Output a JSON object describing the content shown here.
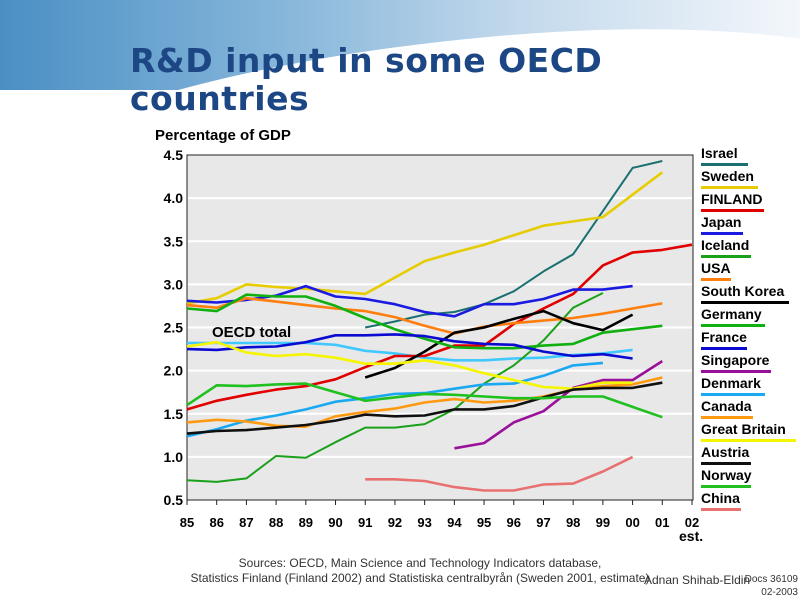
{
  "slide": {
    "title": "R&D input in some OECD countries",
    "sources_line1": "Sources: OECD, Main Science and Technology Indicators database,",
    "sources_line2": "Statistics Finland (Finland 2002) and Statistiska centralbyrån (Sweden 2001, estimate)",
    "author": "Adnan Shihab-Eldin",
    "doc_id": "Docs 36109",
    "doc_date": "02-2003"
  },
  "chart_data": {
    "type": "line",
    "title": "R&D input in some OECD countries",
    "ylabel": "Percentage of GDP",
    "xlabel": "",
    "x": [
      "85",
      "86",
      "87",
      "88",
      "89",
      "90",
      "91",
      "92",
      "93",
      "94",
      "95",
      "96",
      "97",
      "98",
      "99",
      "00",
      "01",
      "02"
    ],
    "x_extra_label": "est.",
    "yticks": [
      "0.5",
      "1.0",
      "1.5",
      "2.0",
      "2.5",
      "3.0",
      "3.5",
      "4.0",
      "4.5"
    ],
    "ylim": [
      0.5,
      4.5
    ],
    "grid": true,
    "legend_position": "right",
    "annotation": "OECD total",
    "series": [
      {
        "name": "Israel",
        "color": "#1a7070",
        "values": [
          null,
          null,
          null,
          null,
          null,
          null,
          2.5,
          2.57,
          2.65,
          2.68,
          2.77,
          2.92,
          3.15,
          3.35,
          3.85,
          4.35,
          4.43,
          null
        ]
      },
      {
        "name": "Sweden",
        "color": "#e6cc00",
        "values": [
          2.78,
          2.84,
          3.0,
          2.97,
          2.95,
          2.92,
          2.89,
          3.08,
          3.27,
          3.37,
          3.46,
          3.57,
          3.68,
          3.73,
          3.78,
          4.04,
          4.3,
          null
        ]
      },
      {
        "name": "FINLAND",
        "color": "#e00000",
        "values": [
          1.55,
          1.65,
          1.72,
          1.78,
          1.82,
          1.9,
          2.04,
          2.17,
          2.17,
          2.29,
          2.29,
          2.54,
          2.72,
          2.89,
          3.22,
          3.37,
          3.4,
          3.46
        ]
      },
      {
        "name": "Japan",
        "color": "#1a1ae0",
        "values": [
          2.81,
          2.79,
          2.82,
          2.87,
          2.98,
          2.86,
          2.83,
          2.77,
          2.68,
          2.63,
          2.77,
          2.77,
          2.83,
          2.94,
          2.94,
          2.98,
          null,
          null
        ]
      },
      {
        "name": "Iceland",
        "color": "#1aa01a",
        "values": [
          0.73,
          0.71,
          0.75,
          1.01,
          0.99,
          1.17,
          1.34,
          1.34,
          1.38,
          1.55,
          1.85,
          2.06,
          2.35,
          2.73,
          2.9,
          null,
          null,
          null
        ]
      },
      {
        "name": "USA",
        "color": "#ff7f0e",
        "values": [
          2.76,
          2.73,
          2.84,
          2.8,
          2.76,
          2.72,
          2.69,
          2.62,
          2.52,
          2.43,
          2.51,
          2.55,
          2.58,
          2.61,
          2.66,
          2.72,
          2.78,
          null
        ]
      },
      {
        "name": "South Korea",
        "color": "#000000",
        "values": [
          null,
          null,
          null,
          null,
          null,
          null,
          1.92,
          2.03,
          2.22,
          2.44,
          2.5,
          2.6,
          2.69,
          2.55,
          2.47,
          2.65,
          null,
          null
        ]
      },
      {
        "name": "Germany",
        "color": "#10b010",
        "values": [
          2.72,
          2.69,
          2.88,
          2.86,
          2.86,
          2.75,
          2.61,
          2.48,
          2.37,
          2.27,
          2.26,
          2.26,
          2.29,
          2.31,
          2.44,
          2.48,
          2.52,
          null
        ]
      },
      {
        "name": "France",
        "color": "#0a0ad0",
        "values": [
          2.25,
          2.24,
          2.27,
          2.28,
          2.33,
          2.41,
          2.41,
          2.42,
          2.4,
          2.34,
          2.31,
          2.3,
          2.22,
          2.17,
          2.19,
          2.14,
          null,
          null
        ]
      },
      {
        "name": "Singapore",
        "color": "#9a109a",
        "values": [
          null,
          null,
          null,
          null,
          null,
          null,
          null,
          null,
          null,
          1.1,
          1.16,
          1.4,
          1.53,
          1.8,
          1.89,
          1.89,
          2.11,
          null
        ]
      },
      {
        "name": "Denmark",
        "color": "#1aa8f0",
        "values": [
          1.24,
          1.32,
          1.42,
          1.48,
          1.55,
          1.64,
          1.68,
          1.73,
          1.74,
          1.79,
          1.84,
          1.85,
          1.94,
          2.06,
          2.09,
          null,
          null,
          null
        ]
      },
      {
        "name": "Canada",
        "color": "#ff9a10",
        "values": [
          1.4,
          1.43,
          1.41,
          1.36,
          1.35,
          1.47,
          1.52,
          1.56,
          1.63,
          1.67,
          1.63,
          1.65,
          1.7,
          1.78,
          1.82,
          1.84,
          1.92,
          null
        ]
      },
      {
        "name": "Great Britain",
        "color": "#f5f500",
        "values": [
          2.28,
          2.33,
          2.21,
          2.17,
          2.19,
          2.15,
          2.08,
          2.08,
          2.12,
          2.06,
          1.97,
          1.89,
          1.81,
          1.79,
          1.86,
          1.86,
          null,
          null
        ]
      },
      {
        "name": "Austria",
        "color": "#101010",
        "values": [
          1.27,
          1.3,
          1.31,
          1.34,
          1.37,
          1.42,
          1.49,
          1.47,
          1.48,
          1.55,
          1.55,
          1.59,
          1.69,
          1.78,
          1.8,
          1.8,
          1.86,
          null
        ]
      },
      {
        "name": "Norway",
        "color": "#20c020",
        "values": [
          1.6,
          1.83,
          1.82,
          1.84,
          1.85,
          1.75,
          1.65,
          1.69,
          1.73,
          1.72,
          1.7,
          1.68,
          1.68,
          1.7,
          1.7,
          1.58,
          1.46,
          null
        ]
      },
      {
        "name": "China",
        "color": "#e87070",
        "values": [
          null,
          null,
          null,
          null,
          null,
          null,
          0.74,
          0.74,
          0.72,
          0.65,
          0.61,
          0.61,
          0.68,
          0.69,
          0.83,
          1.0,
          null,
          null
        ]
      },
      {
        "name": "OECD total",
        "color": "#40c8ff",
        "in_legend": false,
        "values": [
          2.32,
          2.32,
          2.32,
          2.32,
          2.32,
          2.3,
          2.23,
          2.2,
          2.15,
          2.12,
          2.12,
          2.14,
          2.15,
          2.18,
          2.2,
          2.24,
          null,
          null
        ]
      }
    ]
  }
}
